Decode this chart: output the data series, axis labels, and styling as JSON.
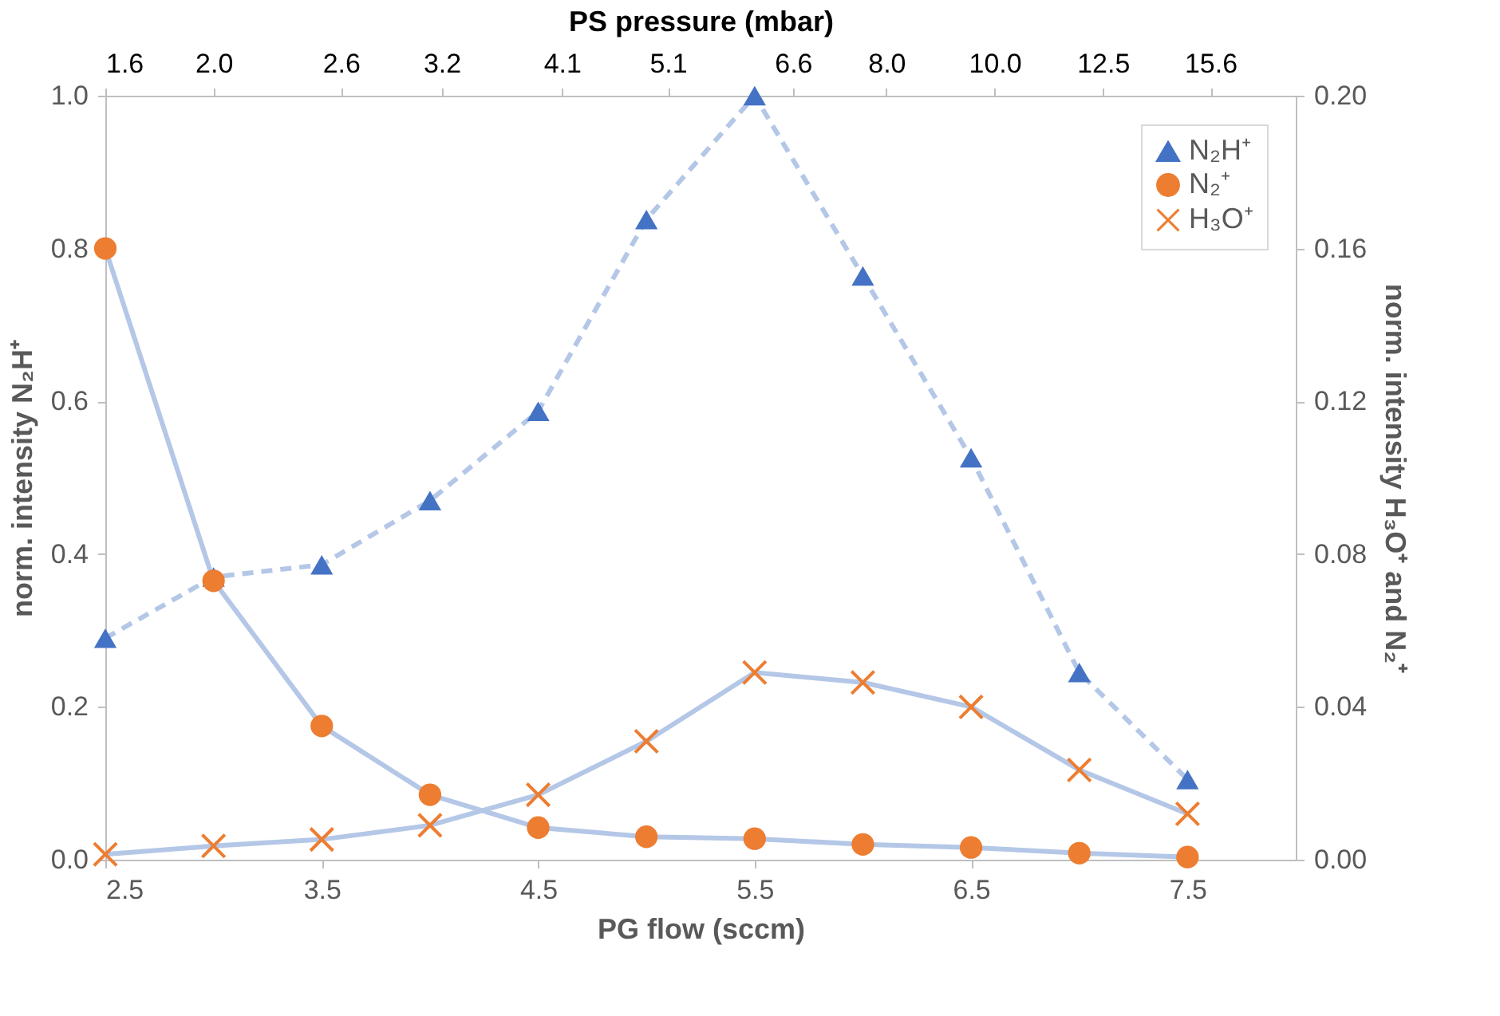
{
  "chart_data": {
    "type": "line",
    "xlabel": "PG flow (sccm)",
    "ylabel": "norm. intensity N₂H⁺",
    "y2label": "norm. intensity H₃O⁺ and N₂⁺",
    "x2label": "PS pressure (mbar)",
    "x": [
      2.5,
      3.0,
      3.5,
      4.0,
      4.5,
      5.0,
      5.5,
      6.0,
      6.5,
      7.0,
      7.5
    ],
    "xlim": [
      2.5,
      8.0
    ],
    "xticks": [
      2.5,
      3.5,
      4.5,
      5.5,
      6.5,
      7.5
    ],
    "x2lim": [
      1.6,
      18.6
    ],
    "log": "x2",
    "x2ticks": [
      1.6,
      {
        "value": 2,
        "label": "2.0"
      },
      2.6,
      3.2,
      4.1,
      5.1,
      6.6,
      {
        "value": 8,
        "label": "8.0"
      },
      {
        "value": 10,
        "label": "10.0"
      },
      12.5,
      15.6
    ],
    "ylim": [
      0,
      1.0
    ],
    "yticks": [
      {
        "value": 0,
        "label": "0.0"
      },
      0.2,
      0.4,
      0.6,
      0.8,
      {
        "value": 1.0,
        "label": "1.0"
      }
    ],
    "y2lim": [
      0,
      0.2
    ],
    "y2ticks": [
      {
        "value": 0,
        "label": "0.00"
      },
      0.04,
      0.08,
      0.12,
      0.16,
      {
        "value": 0.2,
        "label": "0.20"
      }
    ],
    "grid": false,
    "legend": "top right",
    "series": [
      {
        "name": "N₂H⁺",
        "color": "#4472c4",
        "marker": "triangle",
        "line_style": "dashed",
        "values": [
          0.29,
          0.37,
          0.386,
          0.47,
          0.587,
          0.838,
          1.0,
          0.764,
          0.526,
          0.245,
          0.105
        ]
      },
      {
        "name": "N₂⁺",
        "color": "#ed7d31",
        "marker": "circle",
        "line_style": "solid",
        "axis": "y2",
        "values": [
          0.16,
          0.073,
          0.035,
          0.017,
          0.0084,
          0.006,
          0.0055,
          0.004,
          0.0032,
          0.0017,
          0.0007
        ]
      },
      {
        "name": "H₃O⁺",
        "color": "#ed7d31",
        "marker": "cross",
        "line_style": "solid",
        "axis": "y2",
        "values": [
          0.0014,
          0.0036,
          0.0053,
          0.009,
          0.017,
          0.031,
          0.049,
          0.0464,
          0.04,
          0.0235,
          0.012
        ]
      }
    ]
  }
}
